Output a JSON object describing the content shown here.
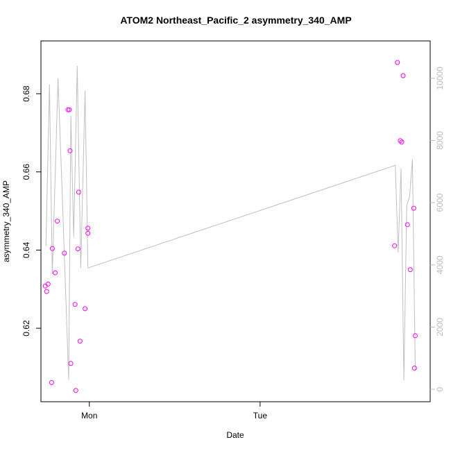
{
  "chart_data": {
    "type": "scatter",
    "title": "ATOM2 Northeast_Pacific_2 asymmetry_340_AMP",
    "xlabel": "Date",
    "ylabel": "asymmetry_340_AMP",
    "x_tick_labels": [
      "Mon",
      "Tue"
    ],
    "x_ticks_hours": [
      0,
      24
    ],
    "x_axis_unit": "hours relative to Monday 00:00",
    "xlim": [
      -6.8,
      47.9
    ],
    "ylim": [
      0.6012,
      0.6935
    ],
    "y_ticks": [
      0.62,
      0.64,
      0.66,
      0.68
    ],
    "y_tick_labels": [
      "0.62",
      "0.64",
      "0.66",
      "0.68"
    ],
    "y2lim": [
      -400,
      11200
    ],
    "y2_ticks": [
      0,
      2000,
      4000,
      6000,
      8000,
      10000
    ],
    "y2_tick_labels": [
      "0",
      "2000",
      "4000",
      "6000",
      "8000",
      "10000"
    ],
    "grid": false,
    "colors": {
      "points": "#ff00ff",
      "line": "#c0c0c0",
      "axis": "#000000",
      "right_axis": "#bdbdbd"
    },
    "series": [
      {
        "kind": "points",
        "axis": "left",
        "x": [
          -6.2,
          -6.0,
          -5.8,
          -5.3,
          -5.2,
          -4.8,
          -4.5,
          -3.5,
          -3.0,
          -2.8,
          -2.7,
          -2.6,
          -2.0,
          -1.9,
          -1.6,
          -1.5,
          -1.3,
          -0.6,
          -0.2,
          -0.2,
          42.9,
          43.3,
          43.7,
          43.9,
          44.1,
          44.7,
          45.1,
          45.6,
          45.7,
          45.8
        ],
        "y": [
          0.6308,
          0.6294,
          0.6313,
          0.6061,
          0.6404,
          0.6342,
          0.6474,
          0.6392,
          0.6759,
          0.6759,
          0.6654,
          0.611,
          0.6261,
          0.6041,
          0.6403,
          0.6548,
          0.6167,
          0.625,
          0.6456,
          0.6443,
          0.6411,
          0.688,
          0.668,
          0.6676,
          0.6846,
          0.6465,
          0.635,
          0.6507,
          0.6098,
          0.6181
        ]
      },
      {
        "kind": "line",
        "axis": "right",
        "x": [
          -6.1,
          -5.6,
          -5.2,
          -4.4,
          -3.8,
          -2.9,
          -2.6,
          -2.2,
          -1.7,
          -1.2,
          -0.6,
          -0.2,
          43.0,
          43.4,
          43.8,
          44.2,
          44.6,
          45.0,
          45.4,
          45.8
        ],
        "y": [
          4600,
          9800,
          3700,
          10000,
          6200,
          300,
          8800,
          4900,
          10400,
          3900,
          9600,
          3900,
          7200,
          4400,
          7100,
          300,
          5900,
          6200,
          7400,
          600
        ]
      }
    ]
  }
}
